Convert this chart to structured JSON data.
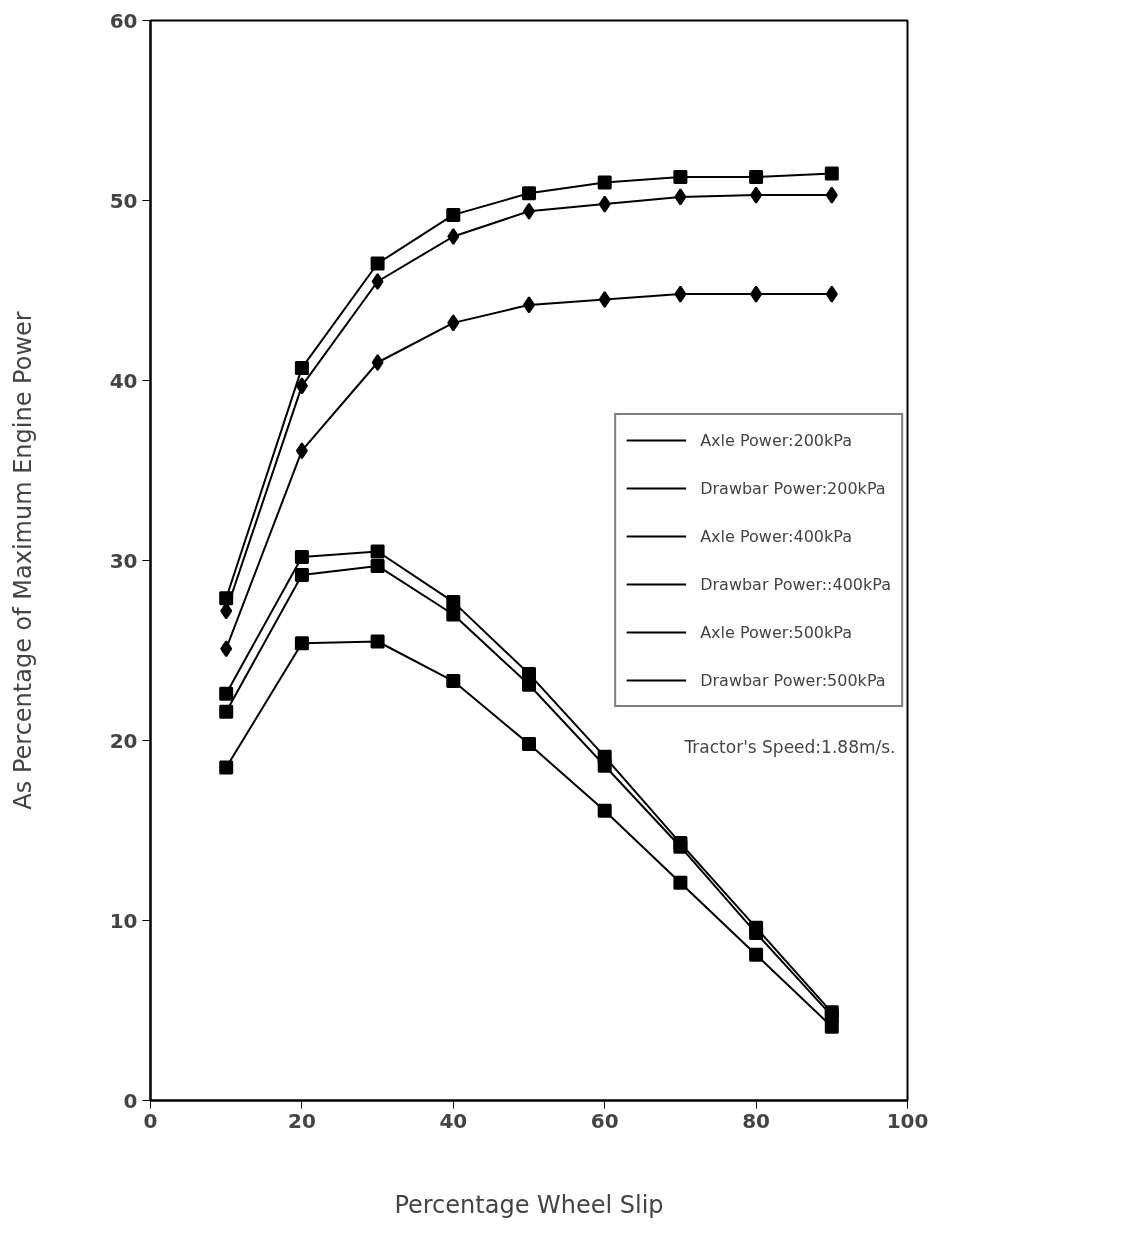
{
  "chart_data": {
    "type": "line",
    "xlabel": "Percentage Wheel Slip",
    "ylabel": "As Percentage of Maximum Engine Power",
    "x": [
      10,
      20,
      30,
      40,
      50,
      60,
      70,
      80,
      90
    ],
    "xlim": [
      0,
      100
    ],
    "xticks": [
      0,
      20,
      40,
      60,
      80,
      100
    ],
    "ylim": [
      0,
      60
    ],
    "yticks": [
      0,
      10,
      20,
      30,
      40,
      50,
      60
    ],
    "grid": false,
    "legend": "right",
    "line_style": "solid",
    "annotations": [
      "Tractor's Speed:1.88m/s."
    ],
    "series": [
      {
        "name": "Axle Power:200kPa",
        "color": "#000000",
        "marker": "square",
        "values": [
          18.5,
          25.4,
          25.5,
          23.3,
          19.8,
          16.1,
          12.1,
          8.1,
          4.1
        ]
      },
      {
        "name": "Drawbar Power:200kPa",
        "color": "#000000",
        "marker": "diamond",
        "values": [
          25.1,
          36.1,
          41.0,
          43.2,
          44.2,
          44.5,
          44.8,
          44.8,
          44.8
        ]
      },
      {
        "name": "Axle Power:400kPa",
        "color": "#000000",
        "marker": "square",
        "values": [
          21.6,
          29.2,
          29.7,
          27.0,
          23.1,
          18.6,
          14.1,
          9.3,
          4.7
        ]
      },
      {
        "name": "Drawbar Power::400kPa",
        "color": "#000000",
        "marker": "diamond",
        "values": [
          27.2,
          39.7,
          45.5,
          48.0,
          49.4,
          49.8,
          50.2,
          50.3,
          50.3
        ]
      },
      {
        "name": "Axle Power:500kPa",
        "color": "#000000",
        "marker": "square",
        "values": [
          22.6,
          30.2,
          30.5,
          27.7,
          23.7,
          19.1,
          14.3,
          9.6,
          4.9
        ]
      },
      {
        "name": "Drawbar Power:500kPa",
        "color": "#000000",
        "marker": "square",
        "values": [
          27.9,
          40.7,
          46.5,
          49.2,
          50.4,
          51.0,
          51.3,
          51.3,
          51.5
        ]
      }
    ]
  }
}
